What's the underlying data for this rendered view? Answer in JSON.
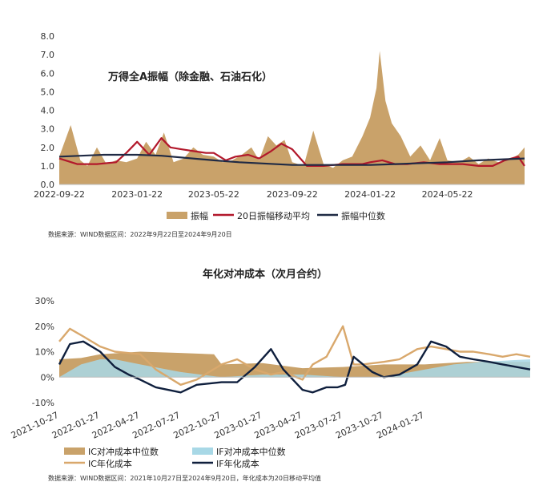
{
  "chart_data": [
    {
      "type": "area",
      "title": "万得全A振幅（除金融、石油石化）",
      "ylim": [
        0,
        8
      ],
      "yticks": [
        "0.0",
        "1.0",
        "2.0",
        "3.0",
        "4.0",
        "5.0",
        "6.0",
        "7.0",
        "8.0"
      ],
      "x_tick_labels": [
        "2022-09-22",
        "2023-01-22",
        "2023-05-22",
        "2023-09-22",
        "2024-01-22",
        "2024-05-22"
      ],
      "x_start": "2022-09-22",
      "x_end": "2024-09-20",
      "colors": {
        "amplitude": "#c9a26a",
        "ma20": "#b2182b",
        "median": "#1f2a44"
      },
      "legend": [
        "振幅",
        "20日振幅移动平均",
        "振幅中位数"
      ],
      "series": [
        {
          "name": "振幅",
          "type": "area",
          "x": [
            "2022-09-22",
            "2022-10-10",
            "2022-10-25",
            "2022-11-05",
            "2022-11-20",
            "2022-12-05",
            "2022-12-20",
            "2023-01-05",
            "2023-01-22",
            "2023-02-05",
            "2023-02-20",
            "2023-03-05",
            "2023-03-20",
            "2023-04-05",
            "2023-04-20",
            "2023-05-05",
            "2023-05-22",
            "2023-06-05",
            "2023-06-20",
            "2023-07-05",
            "2023-07-20",
            "2023-08-01",
            "2023-08-15",
            "2023-08-28",
            "2023-09-10",
            "2023-09-22",
            "2023-10-10",
            "2023-10-25",
            "2023-11-10",
            "2023-11-25",
            "2023-12-10",
            "2023-12-25",
            "2024-01-10",
            "2024-01-22",
            "2024-02-01",
            "2024-02-06",
            "2024-02-15",
            "2024-02-25",
            "2024-03-10",
            "2024-03-25",
            "2024-04-10",
            "2024-04-25",
            "2024-05-10",
            "2024-05-22",
            "2024-06-10",
            "2024-06-25",
            "2024-07-10",
            "2024-07-25",
            "2024-08-10",
            "2024-08-25",
            "2024-09-10",
            "2024-09-20"
          ],
          "values": [
            1.5,
            3.2,
            1.3,
            1.0,
            2.0,
            1.1,
            1.3,
            1.2,
            1.4,
            2.3,
            1.6,
            2.8,
            1.2,
            1.4,
            2.0,
            1.6,
            1.5,
            1.2,
            1.3,
            1.6,
            2.0,
            1.3,
            2.6,
            2.1,
            2.4,
            1.2,
            1.0,
            2.9,
            1.1,
            0.9,
            1.3,
            1.5,
            2.6,
            3.6,
            5.2,
            7.2,
            4.5,
            3.3,
            2.6,
            1.5,
            2.1,
            1.3,
            2.5,
            1.3,
            1.2,
            1.5,
            1.1,
            1.4,
            1.2,
            1.3,
            1.6,
            2.0
          ]
        },
        {
          "name": "20日振幅移动平均",
          "type": "line",
          "x": [
            "2022-09-22",
            "2022-10-20",
            "2022-11-20",
            "2022-12-20",
            "2023-01-05",
            "2023-01-22",
            "2023-02-10",
            "2023-03-01",
            "2023-03-15",
            "2023-04-01",
            "2023-04-20",
            "2023-05-10",
            "2023-05-22",
            "2023-06-10",
            "2023-06-25",
            "2023-07-15",
            "2023-08-01",
            "2023-08-20",
            "2023-09-05",
            "2023-09-22",
            "2023-10-15",
            "2023-11-10",
            "2023-12-10",
            "2024-01-10",
            "2024-01-22",
            "2024-02-10",
            "2024-03-01",
            "2024-03-20",
            "2024-04-15",
            "2024-05-10",
            "2024-05-22",
            "2024-06-15",
            "2024-07-10",
            "2024-08-01",
            "2024-08-20",
            "2024-09-10",
            "2024-09-20"
          ],
          "values": [
            1.4,
            1.1,
            1.1,
            1.2,
            1.7,
            2.3,
            1.6,
            2.5,
            2.0,
            1.9,
            1.8,
            1.7,
            1.7,
            1.3,
            1.5,
            1.6,
            1.4,
            1.8,
            2.2,
            1.9,
            1.0,
            1.0,
            1.1,
            1.1,
            1.2,
            1.3,
            1.1,
            1.1,
            1.2,
            1.1,
            1.1,
            1.1,
            1.0,
            1.0,
            1.3,
            1.5,
            1.0
          ]
        },
        {
          "name": "振幅中位数",
          "type": "line",
          "x": [
            "2022-09-22",
            "2022-12-01",
            "2023-01-22",
            "2023-03-01",
            "2023-05-22",
            "2023-07-01",
            "2023-09-22",
            "2023-12-01",
            "2024-01-22",
            "2024-03-01",
            "2024-05-22",
            "2024-07-10",
            "2024-09-20"
          ],
          "values": [
            1.5,
            1.6,
            1.6,
            1.55,
            1.3,
            1.2,
            1.05,
            1.05,
            1.05,
            1.1,
            1.2,
            1.3,
            1.4
          ]
        }
      ],
      "source": "数据来源：WIND数据区间：2022年9月22日至2024年9月20日"
    },
    {
      "type": "area",
      "title": "年化对冲成本（次月合约）",
      "ylim": [
        -10,
        30
      ],
      "yticks": [
        "-10%",
        "0%",
        "10%",
        "20%",
        "30%"
      ],
      "x_tick_labels": [
        "2021-10-27",
        "2022-01-27",
        "2022-04-27",
        "2022-07-27",
        "2022-10-27",
        "2023-01-27",
        "2023-04-27",
        "2023-07-27",
        "2023-10-27",
        "2024-01-27"
      ],
      "x_start": "2021-10-27",
      "x_end": "2024-09-20",
      "colors": {
        "ic_median": "#c9a26a",
        "if_median": "#a8d8e6",
        "ic_cost": "#d9a86c",
        "if_cost": "#0f1f3d"
      },
      "legend": [
        "IC对冲成本中位数",
        "IF对冲成本中位数",
        "IC年化成本",
        "IF年化成本"
      ],
      "series": [
        {
          "name": "IC对冲成本中位数",
          "type": "area",
          "x": [
            "2021-10-27",
            "2021-12-15",
            "2022-01-27",
            "2022-04-27",
            "2022-07-27",
            "2022-10-10",
            "2022-10-27",
            "2023-01-27",
            "2023-04-27",
            "2023-07-27",
            "2023-10-27",
            "2024-01-27",
            "2024-05-01",
            "2024-09-20"
          ],
          "values": [
            7,
            7.5,
            9,
            10,
            9.5,
            9,
            5,
            5.5,
            3.5,
            4,
            5,
            5,
            6,
            6
          ]
        },
        {
          "name": "IF对冲成本中位数",
          "type": "area",
          "x": [
            "2021-10-27",
            "2021-12-15",
            "2022-01-27",
            "2022-03-01",
            "2022-04-27",
            "2022-07-27",
            "2022-10-27",
            "2023-01-27",
            "2023-04-27",
            "2023-07-27",
            "2023-10-27",
            "2024-01-27",
            "2024-04-01",
            "2024-06-01",
            "2024-09-20"
          ],
          "values": [
            0,
            5,
            7,
            7,
            5,
            2,
            0,
            1,
            1,
            0,
            0,
            3,
            5,
            6,
            7
          ]
        },
        {
          "name": "IC年化成本",
          "type": "line",
          "x": [
            "2021-10-27",
            "2021-11-20",
            "2021-12-20",
            "2022-01-27",
            "2022-03-01",
            "2022-04-27",
            "2022-06-01",
            "2022-07-27",
            "2022-09-01",
            "2022-10-27",
            "2022-12-01",
            "2023-01-10",
            "2023-02-15",
            "2023-03-15",
            "2023-04-27",
            "2023-05-20",
            "2023-06-20",
            "2023-07-27",
            "2023-08-20",
            "2023-09-10",
            "2023-10-27",
            "2023-12-01",
            "2024-01-10",
            "2024-02-10",
            "2024-03-15",
            "2024-04-15",
            "2024-05-15",
            "2024-06-20",
            "2024-07-20",
            "2024-08-20",
            "2024-09-20"
          ],
          "values": [
            14,
            19,
            16,
            12,
            10,
            9,
            3,
            -3,
            -1,
            5,
            7,
            3,
            1,
            2,
            -1,
            5,
            8,
            20,
            5,
            5,
            6,
            7,
            11,
            12,
            11,
            10,
            10,
            9,
            8,
            9,
            8
          ]
        },
        {
          "name": "IF年化成本",
          "type": "line",
          "x": [
            "2021-10-27",
            "2021-11-20",
            "2021-12-20",
            "2022-01-27",
            "2022-03-01",
            "2022-04-01",
            "2022-04-27",
            "2022-06-01",
            "2022-07-27",
            "2022-09-01",
            "2022-10-27",
            "2022-12-01",
            "2023-01-10",
            "2023-02-15",
            "2023-03-15",
            "2023-04-27",
            "2023-05-20",
            "2023-06-20",
            "2023-07-15",
            "2023-08-01",
            "2023-08-20",
            "2023-10-01",
            "2023-10-27",
            "2023-12-01",
            "2024-01-10",
            "2024-02-10",
            "2024-03-15",
            "2024-04-15",
            "2024-05-15",
            "2024-06-20",
            "2024-07-20",
            "2024-08-20",
            "2024-09-20"
          ],
          "values": [
            5,
            13,
            14,
            10,
            4,
            1,
            -1,
            -4,
            -6,
            -3,
            -2,
            -2,
            4,
            11,
            3,
            -5,
            -6,
            -4,
            -4,
            -3,
            8,
            2,
            0,
            1,
            5,
            14,
            12,
            8,
            7,
            6,
            5,
            4,
            3
          ]
        }
      ],
      "source": "数据来源：WIND数据区间：2021年10月27日至2024年9月20日，年化成本为20日移动平均值"
    }
  ]
}
